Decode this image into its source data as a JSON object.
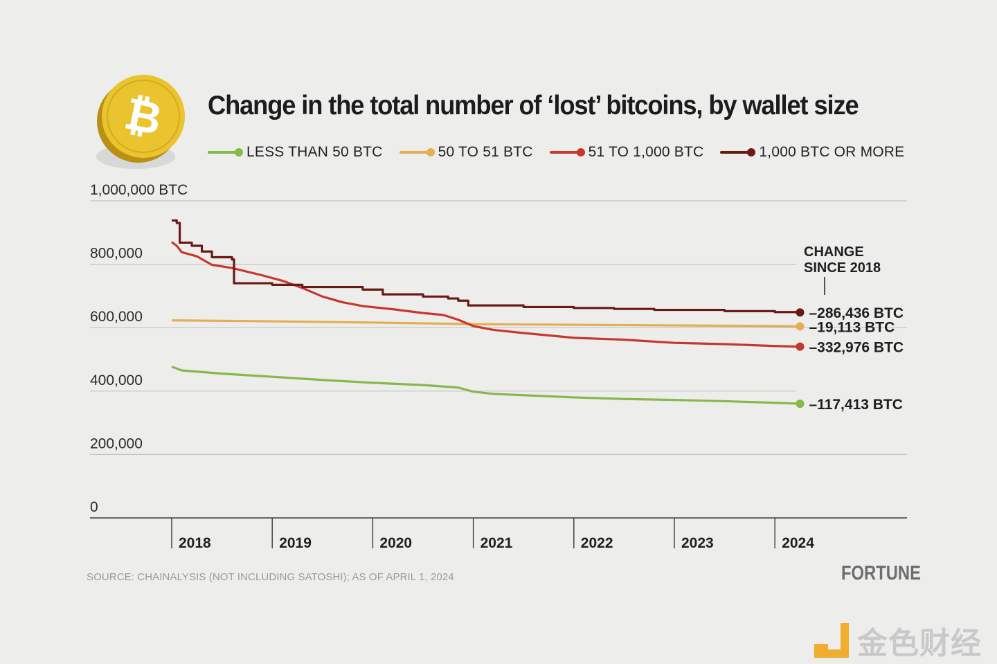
{
  "title": "Change in the total number of ‘lost’ bitcoins, by wallet size",
  "source": "SOURCE: CHAINALYSIS (NOT INCLUDING SATOSHI); AS OF APRIL 1, 2024",
  "brand": "FORTUNE",
  "watermark": "金色财经",
  "coin_icon": "bitcoin-coin-icon",
  "colors": {
    "background": "#ededec",
    "less_than_50": "#86b84a",
    "50_to_51": "#e6ad55",
    "51_to_1000": "#c6382d",
    "1000_or_more": "#6a1a12",
    "coin": "#e9c42f",
    "gridline": "#c4c4c4"
  },
  "chart_data": {
    "type": "line",
    "title": "Change in the total number of ‘lost’ bitcoins, by wallet size",
    "ylabel": "BTC",
    "ylim": [
      0,
      1000000
    ],
    "xlim": [
      2017.2,
      2025.25
    ],
    "y_ticks": [
      0,
      200000,
      400000,
      600000,
      800000,
      1000000
    ],
    "y_tick_labels": [
      "0",
      "200,000",
      "400,000",
      "600,000",
      "800,000",
      "1,000,000 BTC"
    ],
    "x_tick_labels": [
      "2018",
      "2019",
      "2020",
      "2021",
      "2022",
      "2023",
      "2024"
    ],
    "x_ticks": [
      2018,
      2019,
      2020,
      2021,
      2022,
      2023,
      2024
    ],
    "grid": true,
    "legend_position": "top",
    "annotation_header": "CHANGE\nSINCE 2018",
    "series": [
      {
        "name": "LESS THAN 50 BTC",
        "color": "#86b84a",
        "end_label": "–117,413 BTC",
        "step": false,
        "x": [
          2018.0,
          2018.1,
          2018.5,
          2019.0,
          2019.5,
          2020.0,
          2020.5,
          2020.85,
          2021.0,
          2021.2,
          2021.5,
          2022.0,
          2022.5,
          2023.0,
          2023.5,
          2024.0,
          2024.25
        ],
        "y": [
          477000,
          465000,
          455000,
          445000,
          435000,
          426000,
          419000,
          411000,
          398000,
          391000,
          387000,
          380000,
          375000,
          372000,
          368000,
          363000,
          360000
        ]
      },
      {
        "name": "50 TO 51 BTC",
        "color": "#e6ad55",
        "end_label": "–19,113 BTC",
        "step": false,
        "x": [
          2018.0,
          2019.0,
          2020.0,
          2021.0,
          2022.0,
          2023.0,
          2024.0,
          2024.25
        ],
        "y": [
          623000,
          620000,
          616000,
          611000,
          609000,
          607000,
          605000,
          604000
        ]
      },
      {
        "name": "51 TO 1,000 BTC",
        "color": "#c6382d",
        "end_label": "–332,976 BTC",
        "step": false,
        "x": [
          2018.0,
          2018.05,
          2018.1,
          2018.25,
          2018.4,
          2018.6,
          2018.9,
          2019.1,
          2019.3,
          2019.5,
          2019.7,
          2019.9,
          2020.2,
          2020.5,
          2020.7,
          2020.85,
          2021.0,
          2021.2,
          2021.5,
          2022.0,
          2022.5,
          2023.0,
          2023.5,
          2024.0,
          2024.25
        ],
        "y": [
          870000,
          858000,
          838000,
          825000,
          798000,
          788000,
          765000,
          748000,
          725000,
          698000,
          680000,
          668000,
          658000,
          646000,
          640000,
          625000,
          605000,
          593000,
          583000,
          568000,
          562000,
          552000,
          548000,
          542000,
          540000
        ]
      },
      {
        "name": "1,000 BTC OR MORE",
        "color": "#6a1a12",
        "end_label": "–286,436 BTC",
        "step": true,
        "x": [
          2018.0,
          2018.05,
          2018.08,
          2018.2,
          2018.3,
          2018.4,
          2018.6,
          2018.62,
          2019.0,
          2019.3,
          2019.9,
          2020.1,
          2020.5,
          2020.75,
          2020.85,
          2020.95,
          2021.5,
          2022.0,
          2022.4,
          2022.8,
          2023.5,
          2024.0,
          2024.25
        ],
        "y": [
          938000,
          930000,
          868000,
          858000,
          840000,
          822000,
          815000,
          740000,
          735000,
          728000,
          720000,
          705000,
          698000,
          692000,
          685000,
          670000,
          665000,
          662000,
          659000,
          656000,
          652000,
          649000,
          648000
        ]
      }
    ]
  }
}
